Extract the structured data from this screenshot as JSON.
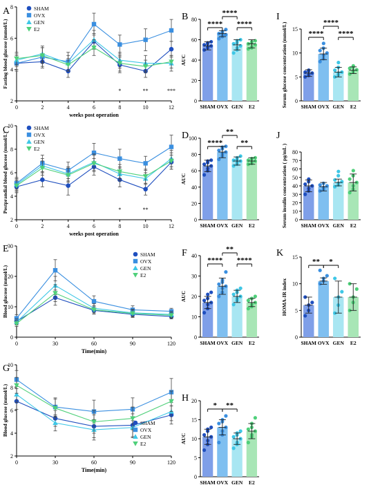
{
  "colors": {
    "sham": "#1f4fbf",
    "ovx": "#3a8fe0",
    "gen": "#3ec7e6",
    "e2": "#4fd07a",
    "sham_bar": "#7f9fe8",
    "ovx_bar": "#7fbff0",
    "gen_bar": "#a8e6f2",
    "e2_bar": "#a8e6b6"
  },
  "chart_data": [
    {
      "id": "A",
      "type": "line",
      "panel_label": "A",
      "ylabel": "Fasting blood glucose (mmol/L)",
      "xlabel": "weeks post operation",
      "x": [
        0,
        2,
        4,
        6,
        8,
        10,
        12
      ],
      "xticks": [
        "0",
        "2",
        "4",
        "6",
        "8",
        "10",
        "12"
      ],
      "ylim": [
        2,
        8
      ],
      "yticks": [
        "2",
        "4",
        "6",
        "8"
      ],
      "series": [
        {
          "name": "SHAM",
          "marker": "circle",
          "color": "#1f4fbf",
          "values": [
            4.4,
            4.5,
            3.9,
            5.8,
            4.3,
            3.9,
            5.3
          ],
          "err": [
            0.4,
            0.4,
            0.4,
            0.5,
            0.5,
            0.4,
            0.5
          ]
        },
        {
          "name": "OVX",
          "marker": "square",
          "color": "#3a8fe0",
          "values": [
            4.4,
            4.8,
            4.5,
            6.9,
            5.6,
            5.9,
            6.5
          ],
          "err": [
            0.5,
            0.6,
            0.6,
            0.7,
            0.6,
            0.7,
            0.7
          ]
        },
        {
          "name": "GEN",
          "marker": "triangle",
          "color": "#3ec7e6",
          "values": [
            4.6,
            5.0,
            4.4,
            5.9,
            4.6,
            4.4,
            4.4
          ],
          "err": [
            0.4,
            0.5,
            0.5,
            0.6,
            0.5,
            0.5,
            0.5
          ]
        },
        {
          "name": "E2",
          "marker": "triangle-down",
          "color": "#4fd07a",
          "values": [
            4.7,
            4.9,
            4.3,
            5.4,
            4.4,
            4.2,
            4.5
          ],
          "err": [
            0.4,
            0.5,
            0.4,
            0.5,
            0.5,
            0.4,
            0.4
          ]
        }
      ],
      "annotations": [
        {
          "x": 8,
          "text": "*"
        },
        {
          "x": 10,
          "text": "**"
        },
        {
          "x": 12,
          "text": "***"
        }
      ]
    },
    {
      "id": "C",
      "type": "line",
      "panel_label": "C",
      "ylabel": "Postprandial blood glucose (mmol/L)",
      "xlabel": "weeks post operation",
      "x": [
        0,
        2,
        4,
        6,
        8,
        10,
        12
      ],
      "xticks": [
        "0",
        "2",
        "4",
        "6",
        "8",
        "10",
        "12"
      ],
      "ylim": [
        2,
        10
      ],
      "yticks": [
        "2",
        "4",
        "6",
        "8",
        "10"
      ],
      "series": [
        {
          "name": "SHAM",
          "marker": "circle",
          "color": "#1f4fbf",
          "values": [
            4.8,
            5.4,
            4.9,
            6.5,
            5.4,
            4.6,
            6.9
          ],
          "err": [
            0.5,
            0.6,
            0.8,
            0.7,
            0.6,
            0.5,
            0.6
          ]
        },
        {
          "name": "OVX",
          "marker": "square",
          "color": "#3a8fe0",
          "values": [
            5.1,
            6.8,
            6.2,
            7.7,
            7.2,
            6.8,
            8.2
          ],
          "err": [
            0.5,
            0.7,
            0.7,
            0.8,
            0.8,
            0.6,
            1.0
          ]
        },
        {
          "name": "GEN",
          "marker": "triangle",
          "color": "#3ec7e6",
          "values": [
            5.0,
            6.6,
            5.9,
            6.9,
            5.9,
            5.5,
            7.2
          ],
          "err": [
            0.5,
            0.6,
            0.6,
            0.7,
            0.6,
            0.5,
            0.7
          ]
        },
        {
          "name": "E2",
          "marker": "triangle-down",
          "color": "#4fd07a",
          "values": [
            4.9,
            6.4,
            5.8,
            6.8,
            6.1,
            5.7,
            7.0
          ],
          "err": [
            0.5,
            0.6,
            0.6,
            0.7,
            0.6,
            0.6,
            0.7
          ]
        }
      ],
      "annotations": [
        {
          "x": 8,
          "text": "*"
        },
        {
          "x": 10,
          "text": "**"
        }
      ]
    },
    {
      "id": "E",
      "type": "line",
      "panel_label": "E",
      "ylabel": "Blood glucose (mmol/L)",
      "xlabel": "Time(min)",
      "x": [
        0,
        30,
        60,
        90,
        120
      ],
      "xticks": [
        "0",
        "30",
        "60",
        "90",
        "120"
      ],
      "ylim": [
        0,
        30
      ],
      "yticks": [
        "0",
        "10",
        "20",
        "30"
      ],
      "legend": "right",
      "series": [
        {
          "name": "SHAM",
          "marker": "circle",
          "color": "#1f4fbf",
          "values": [
            5.2,
            13.0,
            8.8,
            7.5,
            6.8
          ],
          "err": [
            1.0,
            2.5,
            1.2,
            1.0,
            0.8
          ]
        },
        {
          "name": "OVX",
          "marker": "square",
          "color": "#3a8fe0",
          "values": [
            6.2,
            22.0,
            11.8,
            9.0,
            8.5
          ],
          "err": [
            1.2,
            3.5,
            1.8,
            1.3,
            1.0
          ]
        },
        {
          "name": "GEN",
          "marker": "triangle",
          "color": "#3ec7e6",
          "values": [
            5.0,
            17.0,
            9.5,
            8.0,
            7.5
          ],
          "err": [
            1.0,
            3.0,
            1.5,
            1.2,
            1.0
          ]
        },
        {
          "name": "E2",
          "marker": "triangle-down",
          "color": "#4fd07a",
          "values": [
            4.5,
            14.5,
            9.0,
            7.8,
            7.2
          ],
          "err": [
            1.0,
            2.8,
            1.4,
            1.1,
            0.9
          ]
        }
      ]
    },
    {
      "id": "G",
      "type": "line",
      "panel_label": "G",
      "ylabel": "Blood glucose (mmol/L)",
      "xlabel": "Time(min)",
      "x": [
        0,
        30,
        60,
        90,
        120
      ],
      "xticks": [
        "0",
        "30",
        "60",
        "90",
        "120"
      ],
      "ylim": [
        2,
        10
      ],
      "yticks": [
        "2",
        "4",
        "6",
        "8",
        "10"
      ],
      "legend": "bottom-right",
      "series": [
        {
          "name": "SHAM",
          "marker": "circle",
          "color": "#1f4fbf",
          "values": [
            6.8,
            5.3,
            4.6,
            4.7,
            5.6
          ],
          "err": [
            0.7,
            0.7,
            1.0,
            1.0,
            0.8
          ]
        },
        {
          "name": "OVX",
          "marker": "square",
          "color": "#3a8fe0",
          "values": [
            8.7,
            6.3,
            5.9,
            6.1,
            7.6
          ],
          "err": [
            0.8,
            0.8,
            1.0,
            1.0,
            1.2
          ]
        },
        {
          "name": "GEN",
          "marker": "triangle",
          "color": "#3ec7e6",
          "values": [
            7.4,
            4.9,
            4.3,
            4.5,
            5.9
          ],
          "err": [
            0.7,
            0.7,
            0.9,
            0.9,
            0.8
          ]
        },
        {
          "name": "E2",
          "marker": "triangle-down",
          "color": "#4fd07a",
          "values": [
            8.2,
            6.2,
            5.0,
            5.3,
            6.8
          ],
          "err": [
            0.7,
            0.8,
            1.0,
            1.0,
            0.9
          ]
        }
      ]
    },
    {
      "id": "B",
      "type": "bar",
      "panel_label": "B",
      "ylabel": "AUC",
      "categories": [
        "SHAM",
        "OVX",
        "GEN",
        "E2"
      ],
      "values": [
        54,
        66,
        55,
        56
      ],
      "err": [
        4,
        3,
        5,
        4
      ],
      "ylim": [
        0,
        80
      ],
      "yticks": [
        "0",
        "20",
        "40",
        "60",
        "80"
      ],
      "points": [
        [
          50,
          52,
          53,
          54,
          55,
          56,
          57,
          58
        ],
        [
          61,
          63,
          64,
          65,
          66,
          67,
          68,
          70
        ],
        [
          47,
          50,
          52,
          54,
          56,
          57,
          59,
          60
        ],
        [
          51,
          52,
          53,
          55,
          56,
          57,
          58,
          59
        ]
      ],
      "significance": [
        {
          "from": 0,
          "to": 1,
          "text": "****",
          "level": 0
        },
        {
          "from": 2,
          "to": 3,
          "text": "****",
          "level": 0
        },
        {
          "from": 1,
          "to": 2,
          "text": "****",
          "level": 1
        }
      ]
    },
    {
      "id": "D",
      "type": "bar",
      "panel_label": "D",
      "ylabel": "AUC",
      "categories": [
        "SHAM",
        "OVX",
        "GEN",
        "E2"
      ],
      "values": [
        66,
        83,
        72,
        72
      ],
      "err": [
        7,
        7,
        5,
        4
      ],
      "ylim": [
        0,
        100
      ],
      "yticks": [
        "0",
        "20",
        "40",
        "60",
        "80",
        "100"
      ],
      "points": [
        [
          55,
          60,
          63,
          66,
          68,
          70,
          72,
          73
        ],
        [
          74,
          78,
          81,
          83,
          85,
          87,
          89,
          90
        ],
        [
          66,
          68,
          70,
          72,
          73,
          74,
          76,
          78
        ],
        [
          68,
          69,
          70,
          72,
          73,
          74,
          75,
          76
        ]
      ],
      "significance": [
        {
          "from": 0,
          "to": 1,
          "text": "****",
          "level": 0
        },
        {
          "from": 2,
          "to": 3,
          "text": "**",
          "level": 0
        },
        {
          "from": 1,
          "to": 2,
          "text": "**",
          "level": 1
        }
      ]
    },
    {
      "id": "F",
      "type": "bar",
      "panel_label": "F",
      "ylabel": "AUC",
      "categories": [
        "SHAM",
        "OVX",
        "GEN",
        "E2"
      ],
      "values": [
        17,
        25,
        20,
        17
      ],
      "err": [
        3,
        4,
        3,
        2
      ],
      "ylim": [
        0,
        40
      ],
      "yticks": [
        "0",
        "10",
        "20",
        "30",
        "40"
      ],
      "points": [
        [
          12,
          14,
          16,
          17,
          18,
          19,
          21,
          22
        ],
        [
          20,
          22,
          24,
          25,
          26,
          27,
          28,
          32
        ],
        [
          16,
          18,
          19,
          20,
          21,
          22,
          23,
          24
        ],
        [
          14,
          15,
          16,
          17,
          18,
          19,
          19,
          20
        ]
      ],
      "significance": [
        {
          "from": 0,
          "to": 1,
          "text": "****",
          "level": 0
        },
        {
          "from": 2,
          "to": 3,
          "text": "****",
          "level": 0
        },
        {
          "from": 1,
          "to": 2,
          "text": "**",
          "level": 1
        }
      ]
    },
    {
      "id": "H",
      "type": "bar",
      "panel_label": "H",
      "ylabel": "AUC",
      "categories": [
        "SHAM",
        "OVX",
        "GEN",
        "E2"
      ],
      "values": [
        10.5,
        13,
        10,
        12
      ],
      "err": [
        2,
        2,
        1.5,
        2
      ],
      "ylim": [
        0,
        20
      ],
      "yticks": [
        "0",
        "5",
        "10",
        "15",
        "20"
      ],
      "points": [
        [
          7,
          8.5,
          9.5,
          10.5,
          11,
          12,
          12.5,
          13
        ],
        [
          9,
          11,
          12,
          13,
          14,
          14.5,
          15,
          16
        ],
        [
          7.5,
          8.5,
          9,
          10,
          10.5,
          11,
          11.5,
          12
        ],
        [
          9,
          10.5,
          11,
          12,
          12.5,
          13,
          14,
          15.5
        ]
      ],
      "significance": [
        {
          "from": 0,
          "to": 1,
          "text": "*",
          "level": 0
        },
        {
          "from": 1,
          "to": 2,
          "text": "**",
          "level": 0
        }
      ]
    },
    {
      "id": "I",
      "type": "bar",
      "panel_label": "I",
      "ylabel": "Serum glucose concentration (mmol/L)",
      "categories": [
        "SHAM",
        "OVX",
        "GEN",
        "E2"
      ],
      "values": [
        5.8,
        9.8,
        6.0,
        6.4
      ],
      "err": [
        0.7,
        1.2,
        1.0,
        0.7
      ],
      "ylim": [
        0,
        15
      ],
      "yticks": [
        "0",
        "5",
        "10",
        "15"
      ],
      "points": [
        [
          5.0,
          5.3,
          5.5,
          5.8,
          6.0,
          6.2,
          6.4
        ],
        [
          8.2,
          8.8,
          9.5,
          10.0,
          10.5,
          11.0,
          12.0
        ],
        [
          5.0,
          5.4,
          5.8,
          6.0,
          6.4,
          7.0,
          8.0
        ],
        [
          5.6,
          6.0,
          6.3,
          6.5,
          6.8,
          7.0,
          7.3
        ]
      ],
      "significance": [
        {
          "from": 0,
          "to": 1,
          "text": "****",
          "level": 0
        },
        {
          "from": 2,
          "to": 3,
          "text": "****",
          "level": 0
        },
        {
          "from": 1,
          "to": 2,
          "text": "****",
          "level": 1
        }
      ]
    },
    {
      "id": "J",
      "type": "bar",
      "panel_label": "J",
      "ylabel": "Serum insulin concentration ( pg/mL )",
      "categories": [
        "SHAM",
        "OVX",
        "GEN",
        "E2"
      ],
      "values": [
        40,
        39,
        44,
        44
      ],
      "err": [
        7,
        5,
        4,
        10
      ],
      "ylim": [
        0,
        80
      ],
      "yticks": [
        "0",
        "10",
        "20",
        "30",
        "40",
        "50",
        "60",
        "70",
        "80"
      ],
      "points": [
        [
          30,
          34,
          37,
          40,
          42,
          45,
          48
        ],
        [
          34,
          36,
          38,
          40,
          41,
          43
        ],
        [
          39,
          41,
          43,
          45,
          47,
          52,
          57
        ],
        [
          32,
          36,
          40,
          44,
          48,
          52,
          58
        ]
      ],
      "significance": []
    },
    {
      "id": "K",
      "type": "bar",
      "panel_label": "K",
      "ylabel": "HOMA-IR index",
      "categories": [
        "SHAM",
        "OVX",
        "GEN",
        "E2"
      ],
      "values": [
        6,
        10.5,
        7.5,
        7.5
      ],
      "err": [
        1.5,
        0.6,
        3,
        2.5
      ],
      "ylim": [
        0,
        15
      ],
      "yticks": [
        "0",
        "5",
        "10",
        "15"
      ],
      "points": [
        [
          4,
          5,
          6,
          6.5,
          7.5
        ],
        [
          10,
          10.5,
          11,
          11.5,
          12.5
        ],
        [
          4.5,
          6,
          7.5,
          8.5,
          11
        ],
        [
          5,
          6.5,
          7.5,
          9,
          10
        ]
      ],
      "significance": [
        {
          "from": 0,
          "to": 1,
          "text": "**",
          "level": 0
        },
        {
          "from": 1,
          "to": 2,
          "text": "*",
          "level": 0
        }
      ]
    }
  ]
}
